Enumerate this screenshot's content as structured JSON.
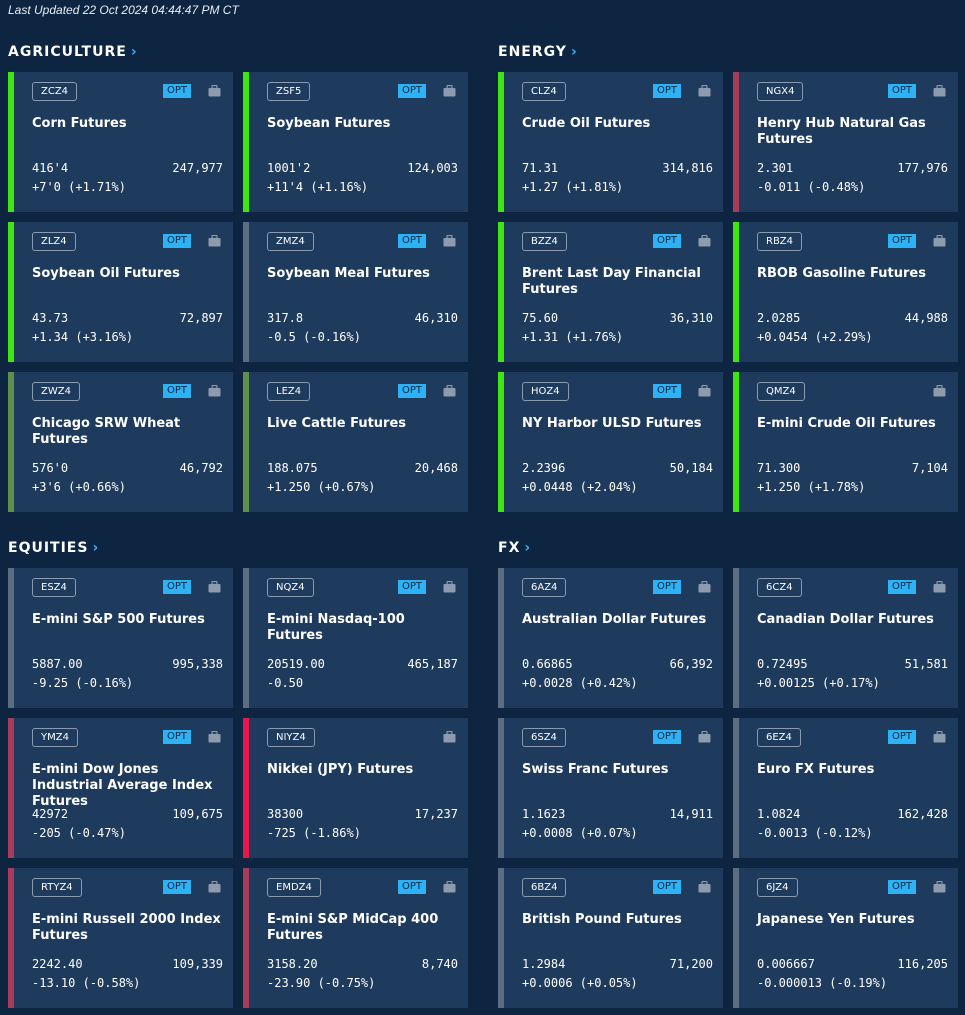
{
  "last_updated": "Last Updated 22 Oct 2024 04:44:47 PM CT",
  "icons": {
    "section_link": "chevron-right-icon",
    "briefcase": "briefcase-icon"
  },
  "colors": {
    "up": "#3ee612",
    "down": "#e8174b",
    "neutral": "#5b6d80",
    "dark_up": "#5f8f4a",
    "dark_down": "#a83a5a",
    "opt_badge": "#2db2f5"
  },
  "sections": [
    {
      "title": "AGRICULTURE",
      "cards": [
        {
          "symbol": "ZCZ4",
          "name": "Corn Futures",
          "price": "416'4",
          "volume": "247,977",
          "change": "+7'0 (+1.71%)",
          "trend": "up",
          "opt": "OPT"
        },
        {
          "symbol": "ZSF5",
          "name": "Soybean Futures",
          "price": "1001'2",
          "volume": "124,003",
          "change": "+11'4 (+1.16%)",
          "trend": "up",
          "opt": "OPT"
        },
        {
          "symbol": "ZLZ4",
          "name": "Soybean Oil Futures",
          "price": "43.73",
          "volume": "72,897",
          "change": "+1.34 (+3.16%)",
          "trend": "up",
          "opt": "OPT"
        },
        {
          "symbol": "ZMZ4",
          "name": "Soybean Meal Futures",
          "price": "317.8",
          "volume": "46,310",
          "change": "-0.5 (-0.16%)",
          "trend": "neutral",
          "opt": "OPT"
        },
        {
          "symbol": "ZWZ4",
          "name": "Chicago SRW Wheat Futures",
          "price": "576'0",
          "volume": "46,792",
          "change": "+3'6 (+0.66%)",
          "trend": "dark_up",
          "opt": "OPT"
        },
        {
          "symbol": "LEZ4",
          "name": "Live Cattle Futures",
          "price": "188.075",
          "volume": "20,468",
          "change": "+1.250 (+0.67%)",
          "trend": "dark_up",
          "opt": "OPT"
        }
      ]
    },
    {
      "title": "ENERGY",
      "cards": [
        {
          "symbol": "CLZ4",
          "name": "Crude Oil Futures",
          "price": "71.31",
          "volume": "314,816",
          "change": "+1.27 (+1.81%)",
          "trend": "up",
          "opt": "OPT"
        },
        {
          "symbol": "NGX4",
          "name": "Henry Hub Natural Gas Futures",
          "price": "2.301",
          "volume": "177,976",
          "change": "-0.011 (-0.48%)",
          "trend": "dark_down",
          "opt": "OPT"
        },
        {
          "symbol": "BZZ4",
          "name": "Brent Last Day Financial Futures",
          "price": "75.60",
          "volume": "36,310",
          "change": "+1.31 (+1.76%)",
          "trend": "up",
          "opt": "OPT"
        },
        {
          "symbol": "RBZ4",
          "name": "RBOB Gasoline Futures",
          "price": "2.0285",
          "volume": "44,988",
          "change": "+0.0454 (+2.29%)",
          "trend": "up",
          "opt": "OPT"
        },
        {
          "symbol": "HOZ4",
          "name": "NY Harbor ULSD Futures",
          "price": "2.2396",
          "volume": "50,184",
          "change": "+0.0448 (+2.04%)",
          "trend": "up",
          "opt": "OPT"
        },
        {
          "symbol": "QMZ4",
          "name": "E-mini Crude Oil Futures",
          "price": "71.300",
          "volume": "7,104",
          "change": "+1.250 (+1.78%)",
          "trend": "up",
          "opt": ""
        }
      ]
    },
    {
      "title": "EQUITIES",
      "cards": [
        {
          "symbol": "ESZ4",
          "name": "E-mini S&P 500 Futures",
          "price": "5887.00",
          "volume": "995,338",
          "change": "-9.25 (-0.16%)",
          "trend": "neutral",
          "opt": "OPT"
        },
        {
          "symbol": "NQZ4",
          "name": "E-mini Nasdaq-100 Futures",
          "price": "20519.00",
          "volume": "465,187",
          "change": "-0.50",
          "trend": "neutral",
          "opt": "OPT"
        },
        {
          "symbol": "YMZ4",
          "name": "E-mini Dow Jones Industrial Average Index Futures",
          "price": "42972",
          "volume": "109,675",
          "change": "-205 (-0.47%)",
          "trend": "dark_down",
          "opt": "OPT"
        },
        {
          "symbol": "NIYZ4",
          "name": "Nikkei (JPY) Futures",
          "price": "38300",
          "volume": "17,237",
          "change": "-725 (-1.86%)",
          "trend": "down",
          "opt": ""
        },
        {
          "symbol": "RTYZ4",
          "name": "E-mini  Russell 2000 Index Futures",
          "price": "2242.40",
          "volume": "109,339",
          "change": "-13.10 (-0.58%)",
          "trend": "dark_down",
          "opt": "OPT"
        },
        {
          "symbol": "EMDZ4",
          "name": "E-mini S&P MidCap 400 Futures",
          "price": "3158.20",
          "volume": "8,740",
          "change": "-23.90 (-0.75%)",
          "trend": "dark_down",
          "opt": "OPT"
        }
      ]
    },
    {
      "title": "FX",
      "cards": [
        {
          "symbol": "6AZ4",
          "name": "Australian Dollar Futures",
          "price": "0.66865",
          "volume": "66,392",
          "change": "+0.0028 (+0.42%)",
          "trend": "neutral",
          "opt": "OPT"
        },
        {
          "symbol": "6CZ4",
          "name": "Canadian Dollar Futures",
          "price": "0.72495",
          "volume": "51,581",
          "change": "+0.00125 (+0.17%)",
          "trend": "neutral",
          "opt": "OPT"
        },
        {
          "symbol": "6SZ4",
          "name": "Swiss Franc Futures",
          "price": "1.1623",
          "volume": "14,911",
          "change": "+0.0008 (+0.07%)",
          "trend": "neutral",
          "opt": "OPT"
        },
        {
          "symbol": "6EZ4",
          "name": "Euro FX Futures",
          "price": "1.0824",
          "volume": "162,428",
          "change": "-0.0013 (-0.12%)",
          "trend": "neutral",
          "opt": "OPT"
        },
        {
          "symbol": "6BZ4",
          "name": "British Pound Futures",
          "price": "1.2984",
          "volume": "71,200",
          "change": "+0.0006 (+0.05%)",
          "trend": "neutral",
          "opt": "OPT"
        },
        {
          "symbol": "6JZ4",
          "name": "Japanese Yen Futures",
          "price": "0.006667",
          "volume": "116,205",
          "change": "-0.000013 (-0.19%)",
          "trend": "neutral",
          "opt": "OPT"
        }
      ]
    }
  ]
}
